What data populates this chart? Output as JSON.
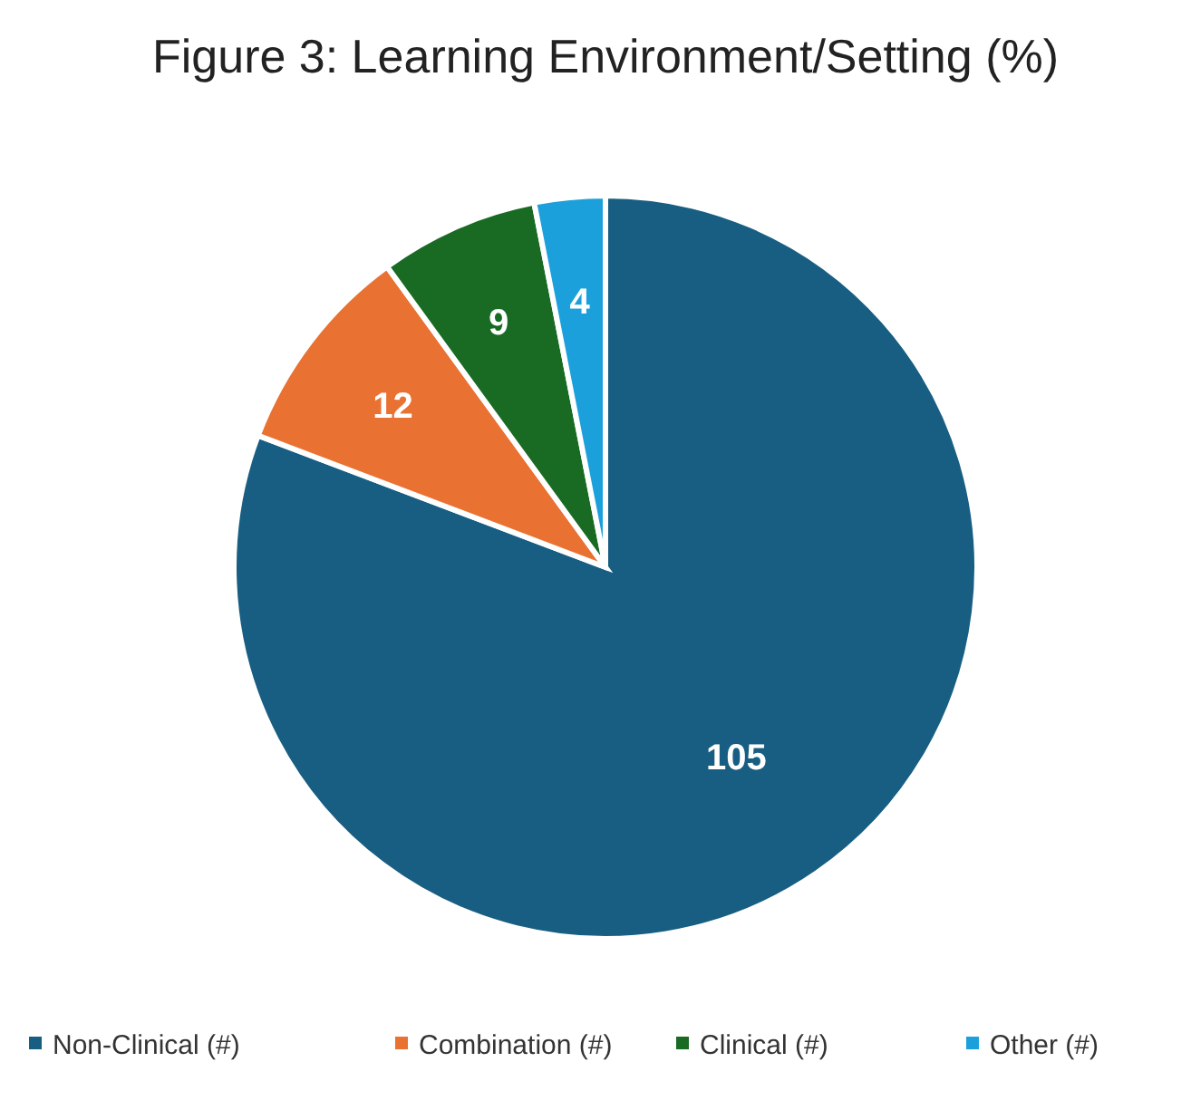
{
  "chart_data": {
    "type": "pie",
    "title": "Figure 3: Learning Environment/Setting (%)",
    "categories": [
      "Non-Clinical (#)",
      "Combination (#)",
      "Clinical (#)",
      "Other (#)"
    ],
    "values": [
      105,
      12,
      9,
      4
    ],
    "colors": [
      "#175e82",
      "#e97132",
      "#196b24",
      "#1ca0dc"
    ],
    "data_labels": true,
    "legend": "bottom"
  }
}
